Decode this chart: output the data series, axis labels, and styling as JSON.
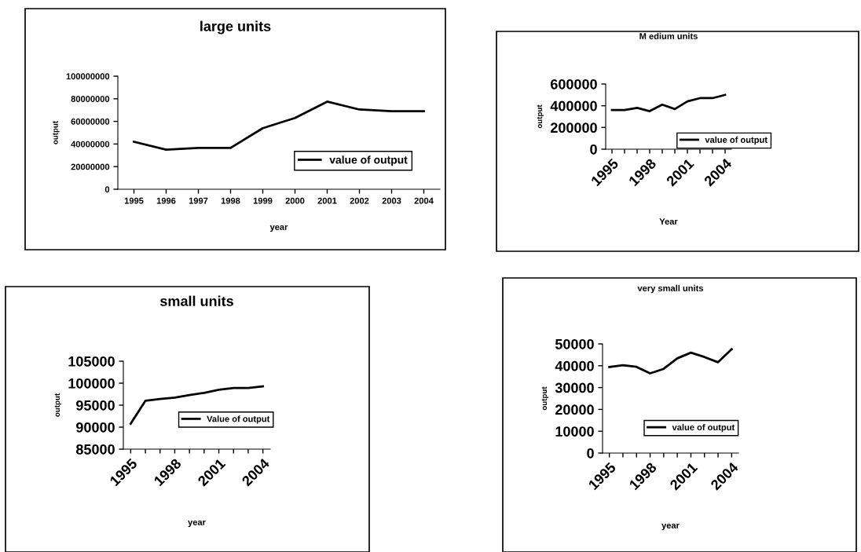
{
  "chart_data": [
    {
      "type": "line",
      "title": "large units",
      "xlabel": "year",
      "ylabel": "output",
      "categories": [
        "1995",
        "1996",
        "1997",
        "1998",
        "1999",
        "2000",
        "2001",
        "2002",
        "2003",
        "2004"
      ],
      "ylim": [
        0,
        100000000
      ],
      "yticks": [
        0,
        20000000,
        40000000,
        60000000,
        80000000,
        100000000
      ],
      "grid": false,
      "legend": "right",
      "marker": "none",
      "line_style": "solid",
      "series": [
        {
          "name": "value of output",
          "color": "#000000",
          "values": [
            42000000,
            35000000,
            36500000,
            36500000,
            54000000,
            63000000,
            77500000,
            70500000,
            69000000,
            69000000
          ]
        }
      ]
    },
    {
      "type": "line",
      "title": "M edium units",
      "xlabel": "Year",
      "ylabel": "output",
      "categories": [
        "1995",
        null,
        null,
        "1998",
        null,
        null,
        "2001",
        null,
        null,
        "2004"
      ],
      "ylim": [
        0,
        600000
      ],
      "yticks": [
        0,
        200000,
        400000,
        600000
      ],
      "grid": false,
      "legend": "bottom right",
      "marker": "none",
      "line_style": "solid",
      "series": [
        {
          "name": "value of output",
          "color": "#000000",
          "values": [
            360000,
            360000,
            380000,
            350000,
            410000,
            370000,
            440000,
            470000,
            470000,
            500000
          ]
        }
      ]
    },
    {
      "type": "line",
      "title": "small units",
      "xlabel": "year",
      "ylabel": "output",
      "categories": [
        "1995",
        null,
        null,
        "1998",
        null,
        null,
        "2001",
        null,
        null,
        "2004"
      ],
      "ylim": [
        85000,
        105000
      ],
      "yticks": [
        85000,
        90000,
        95000,
        100000,
        105000
      ],
      "grid": false,
      "legend": "bottom right",
      "marker": "none",
      "line_style": "solid",
      "series": [
        {
          "name": "Value of output",
          "color": "#000000",
          "values": [
            90800,
            96000,
            96400,
            96700,
            97300,
            97800,
            98500,
            98900,
            98900,
            99300
          ]
        }
      ]
    },
    {
      "type": "line",
      "title": "very small units",
      "xlabel": "year",
      "ylabel": "output",
      "categories": [
        "1995",
        null,
        null,
        "1998",
        null,
        null,
        "2001",
        null,
        null,
        "2004"
      ],
      "ylim": [
        0,
        50000
      ],
      "yticks": [
        0,
        10000,
        20000,
        30000,
        40000,
        50000
      ],
      "grid": false,
      "legend": "bottom right",
      "marker": "none",
      "line_style": "solid",
      "series": [
        {
          "name": "value of output",
          "color": "#000000",
          "values": [
            39400,
            40200,
            39500,
            36500,
            38600,
            43400,
            46000,
            44000,
            41600,
            47600
          ]
        }
      ]
    }
  ]
}
